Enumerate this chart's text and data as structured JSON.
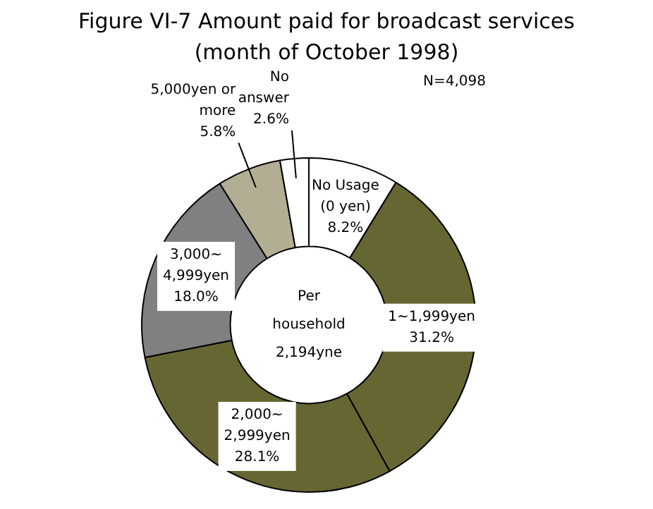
{
  "chart_data": {
    "type": "donut",
    "title": "Figure VI-7 Amount paid for broadcast services",
    "subtitle": "(month of October 1998)",
    "categories": [
      "No Usage (0 yen)",
      "1~1,999yen",
      "2,000~2,999yen",
      "3,000~4,999yen",
      "5,000yen or more",
      "No answer"
    ],
    "values": [
      8.2,
      31.2,
      28.1,
      18.0,
      5.8,
      2.6
    ],
    "value_labels": [
      "8.2%",
      "31.2%",
      "28.1%",
      "18.0%",
      "5.8%",
      "2.6%"
    ],
    "colors": [
      "#ffffff",
      "#666633",
      "#666633",
      "#808080",
      "#b2ae93",
      "#ffffff"
    ],
    "annotations": [
      "N=4,098",
      "Per household 2,194yne"
    ],
    "legend": false
  }
}
